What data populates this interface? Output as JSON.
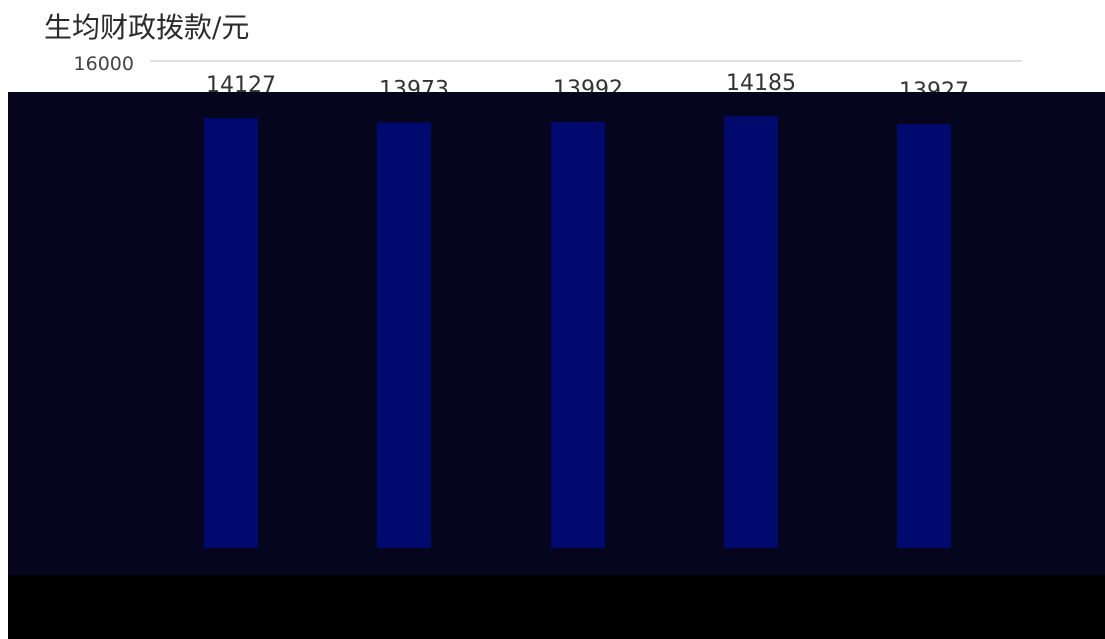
{
  "chart_data": {
    "type": "bar",
    "title": "生均财政拨款/元",
    "xlabel": "",
    "ylabel": "",
    "ylim": [
      0,
      16000
    ],
    "y_ticks_visible": [
      "16000"
    ],
    "categories": [
      "",
      "",
      "",
      "",
      ""
    ],
    "values": [
      14127,
      13973,
      13992,
      14185,
      13927
    ],
    "data_labels": [
      "14127",
      "13973",
      "13992",
      "14185",
      "13927"
    ],
    "colors": {
      "bar": "#000a6e",
      "plot_background": "#05051e",
      "bottom_band": "#000000",
      "gridline": "#d9d9d9"
    },
    "grid": true,
    "legend": "none"
  }
}
